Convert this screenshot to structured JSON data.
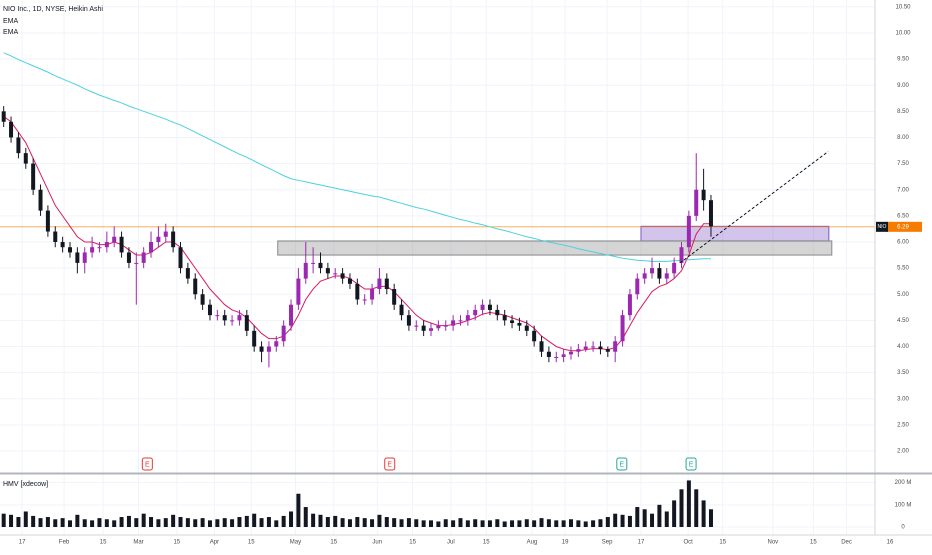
{
  "chart_data": {
    "type": "candlestick",
    "title": "NIO Inc., 1D, NYSE, Heikin Ashi",
    "xlim": [
      -0.5,
      126
    ],
    "xticks": [
      {
        "value": 2.5,
        "label": "17"
      },
      {
        "value": 8.2,
        "label": "Feb"
      },
      {
        "value": 13.5,
        "label": "15"
      },
      {
        "value": 18.3,
        "label": "Mar"
      },
      {
        "value": 23.5,
        "label": "15"
      },
      {
        "value": 28.6,
        "label": "Apr"
      },
      {
        "value": 33.6,
        "label": "15"
      },
      {
        "value": 39.6,
        "label": "May"
      },
      {
        "value": 44.8,
        "label": "15"
      },
      {
        "value": 50.7,
        "label": "Jun"
      },
      {
        "value": 55.5,
        "label": "15"
      },
      {
        "value": 60.7,
        "label": "Jul"
      },
      {
        "value": 65.5,
        "label": "15"
      },
      {
        "value": 71.7,
        "label": "Aug"
      },
      {
        "value": 76.2,
        "label": "19"
      },
      {
        "value": 81.9,
        "label": "Sep"
      },
      {
        "value": 86.5,
        "label": "17"
      },
      {
        "value": 92.9,
        "label": "Oct"
      },
      {
        "value": 97.6,
        "label": "15"
      },
      {
        "value": 104.4,
        "label": "Nov"
      },
      {
        "value": 109.9,
        "label": "15"
      },
      {
        "value": 114.4,
        "label": "Dec"
      },
      {
        "value": 120.3,
        "label": "16"
      }
    ],
    "ylim": [
      1.58,
      10.63
    ],
    "yticks": [
      {
        "value": 2,
        "label": "2.00"
      },
      {
        "value": 2.5,
        "label": "2.50"
      },
      {
        "value": 3,
        "label": "3.00"
      },
      {
        "value": 3.5,
        "label": "3.50"
      },
      {
        "value": 4,
        "label": "4.00"
      },
      {
        "value": 4.5,
        "label": "4.50"
      },
      {
        "value": 5,
        "label": "5.00"
      },
      {
        "value": 5.5,
        "label": "5.50"
      },
      {
        "value": 6,
        "label": "6.00"
      },
      {
        "value": 6.5,
        "label": "6.50"
      },
      {
        "value": 7,
        "label": "7.00"
      },
      {
        "value": 7.5,
        "label": "7.50"
      },
      {
        "value": 8,
        "label": "8.00"
      },
      {
        "value": 8.5,
        "label": "8.50"
      },
      {
        "value": 9,
        "label": "9.00"
      },
      {
        "value": 9.5,
        "label": "9.50"
      },
      {
        "value": 10,
        "label": "10.00"
      },
      {
        "value": 10.5,
        "label": "10.50"
      }
    ],
    "candles": {
      "up_color": "#9c27b0",
      "down_color": "#131722",
      "open": [
        8.5,
        8.3,
        8.0,
        7.7,
        7.5,
        7.0,
        6.6,
        6.2,
        6.0,
        5.9,
        5.8,
        5.6,
        5.8,
        5.9,
        5.9,
        6.0,
        6.1,
        5.8,
        5.6,
        5.6,
        5.8,
        6.0,
        6.1,
        6.2,
        5.9,
        5.5,
        5.3,
        5.0,
        4.8,
        4.6,
        4.6,
        4.5,
        4.5,
        4.6,
        4.3,
        4.0,
        3.9,
        4.0,
        4.1,
        4.4,
        4.8,
        5.3,
        5.6,
        5.6,
        5.5,
        5.4,
        5.4,
        5.3,
        5.2,
        4.9,
        4.9,
        5.1,
        5.3,
        5.1,
        4.8,
        4.6,
        4.4,
        4.4,
        4.3,
        4.35,
        4.4,
        4.4,
        4.5,
        4.5,
        4.6,
        4.7,
        4.8,
        4.7,
        4.6,
        4.5,
        4.45,
        4.4,
        4.3,
        4.1,
        3.9,
        3.8,
        3.8,
        3.85,
        3.9,
        3.95,
        4.0,
        4.0,
        3.95,
        3.9,
        4.1,
        4.6,
        5.0,
        5.3,
        5.4,
        5.5,
        5.3,
        5.4,
        5.6,
        5.9,
        6.5,
        7.0,
        6.8
      ],
      "high": [
        8.6,
        8.4,
        8.1,
        7.8,
        7.6,
        7.1,
        6.7,
        6.3,
        6.1,
        6.0,
        5.9,
        5.9,
        6.1,
        6.0,
        6.2,
        6.3,
        6.2,
        5.9,
        5.8,
        5.9,
        6.2,
        6.3,
        6.35,
        6.3,
        6.0,
        5.6,
        5.4,
        5.1,
        4.9,
        4.7,
        4.7,
        4.6,
        4.7,
        4.7,
        4.4,
        4.1,
        4.1,
        4.2,
        4.5,
        4.9,
        5.5,
        6.0,
        5.9,
        5.8,
        5.6,
        5.5,
        5.5,
        5.4,
        5.3,
        5.0,
        5.2,
        5.5,
        5.4,
        5.2,
        4.9,
        4.7,
        4.5,
        4.5,
        4.45,
        4.5,
        4.5,
        4.6,
        4.6,
        4.7,
        4.8,
        4.9,
        4.9,
        4.8,
        4.7,
        4.6,
        4.55,
        4.5,
        4.4,
        4.2,
        4.0,
        3.9,
        3.95,
        4.0,
        4.05,
        4.1,
        4.1,
        4.1,
        4.0,
        4.2,
        4.7,
        5.1,
        5.4,
        5.5,
        5.7,
        5.6,
        5.5,
        5.7,
        6.0,
        6.6,
        7.7,
        7.4,
        6.9
      ],
      "low": [
        8.2,
        7.9,
        7.6,
        7.4,
        6.9,
        6.5,
        6.1,
        5.9,
        5.8,
        5.7,
        5.4,
        5.4,
        5.7,
        5.8,
        5.8,
        5.9,
        5.7,
        5.5,
        4.8,
        5.5,
        5.7,
        5.9,
        6.0,
        5.8,
        5.4,
        5.2,
        4.9,
        4.7,
        4.5,
        4.5,
        4.4,
        4.4,
        4.4,
        4.2,
        3.9,
        3.7,
        3.6,
        3.9,
        4.0,
        4.3,
        4.7,
        5.2,
        5.4,
        5.4,
        5.3,
        5.3,
        5.2,
        5.1,
        4.8,
        4.8,
        4.8,
        5.0,
        5.0,
        4.7,
        4.5,
        4.3,
        4.3,
        4.2,
        4.2,
        4.3,
        4.3,
        4.3,
        4.4,
        4.4,
        4.5,
        4.6,
        4.6,
        4.5,
        4.4,
        4.35,
        4.3,
        4.2,
        4.0,
        3.8,
        3.7,
        3.7,
        3.7,
        3.75,
        3.8,
        3.9,
        3.9,
        3.85,
        3.8,
        3.7,
        4.0,
        4.5,
        4.9,
        5.2,
        5.3,
        5.2,
        5.2,
        5.3,
        5.5,
        5.8,
        6.4,
        6.6,
        6.1
      ],
      "close": [
        8.3,
        8.0,
        7.7,
        7.5,
        7.0,
        6.6,
        6.2,
        6.0,
        5.9,
        5.8,
        5.6,
        5.8,
        5.9,
        5.9,
        6.0,
        6.1,
        5.8,
        5.6,
        5.6,
        5.8,
        6.0,
        6.1,
        6.2,
        5.9,
        5.5,
        5.3,
        5.0,
        4.8,
        4.6,
        4.6,
        4.5,
        4.5,
        4.6,
        4.3,
        4.0,
        3.9,
        4.0,
        4.1,
        4.4,
        4.8,
        5.3,
        5.6,
        5.6,
        5.5,
        5.4,
        5.4,
        5.3,
        5.2,
        4.9,
        4.9,
        5.1,
        5.3,
        5.1,
        4.8,
        4.6,
        4.4,
        4.4,
        4.3,
        4.35,
        4.4,
        4.4,
        4.5,
        4.5,
        4.6,
        4.7,
        4.8,
        4.7,
        4.6,
        4.5,
        4.45,
        4.4,
        4.3,
        4.1,
        3.9,
        3.8,
        3.8,
        3.85,
        3.9,
        3.95,
        4.0,
        4.0,
        3.95,
        3.9,
        4.1,
        4.6,
        5.0,
        5.3,
        5.4,
        5.5,
        5.3,
        5.4,
        5.6,
        5.9,
        6.5,
        7.0,
        6.8,
        6.3
      ]
    },
    "series": [
      {
        "name": "EMA",
        "color": "#d81b60",
        "values": [
          8.4,
          8.3,
          8.1,
          7.9,
          7.6,
          7.3,
          7.0,
          6.7,
          6.5,
          6.3,
          6.1,
          6.0,
          6.0,
          5.95,
          5.95,
          6.0,
          5.95,
          5.85,
          5.75,
          5.75,
          5.8,
          5.9,
          6.0,
          6.0,
          5.9,
          5.7,
          5.5,
          5.3,
          5.1,
          4.95,
          4.8,
          4.7,
          4.65,
          4.55,
          4.4,
          4.25,
          4.15,
          4.15,
          4.2,
          4.35,
          4.6,
          4.9,
          5.1,
          5.25,
          5.3,
          5.35,
          5.35,
          5.3,
          5.2,
          5.1,
          5.1,
          5.15,
          5.15,
          5.05,
          4.9,
          4.75,
          4.6,
          4.5,
          4.45,
          4.4,
          4.4,
          4.42,
          4.45,
          4.5,
          4.55,
          4.62,
          4.65,
          4.63,
          4.6,
          4.55,
          4.5,
          4.45,
          4.35,
          4.2,
          4.1,
          4.0,
          3.95,
          3.92,
          3.92,
          3.94,
          3.96,
          3.96,
          3.94,
          3.98,
          4.15,
          4.4,
          4.65,
          4.85,
          5.05,
          5.15,
          5.2,
          5.3,
          5.45,
          5.75,
          6.15,
          6.35,
          6.35
        ]
      },
      {
        "name": "EMA",
        "color": "#4dd0e1",
        "values": [
          9.62,
          9.56,
          9.49,
          9.43,
          9.37,
          9.31,
          9.25,
          9.18,
          9.12,
          9.06,
          9.0,
          8.93,
          8.87,
          8.81,
          8.76,
          8.71,
          8.66,
          8.6,
          8.55,
          8.5,
          8.45,
          8.4,
          8.35,
          8.29,
          8.24,
          8.17,
          8.1,
          8.03,
          7.96,
          7.89,
          7.82,
          7.75,
          7.68,
          7.62,
          7.55,
          7.48,
          7.41,
          7.34,
          7.27,
          7.21,
          7.18,
          7.15,
          7.12,
          7.09,
          7.06,
          7.03,
          7.0,
          6.97,
          6.94,
          6.91,
          6.88,
          6.86,
          6.82,
          6.78,
          6.74,
          6.7,
          6.66,
          6.63,
          6.59,
          6.55,
          6.51,
          6.47,
          6.43,
          6.4,
          6.36,
          6.33,
          6.29,
          6.25,
          6.22,
          6.18,
          6.14,
          6.1,
          6.07,
          6.03,
          6.0,
          5.97,
          5.94,
          5.91,
          5.87,
          5.84,
          5.81,
          5.78,
          5.75,
          5.72,
          5.69,
          5.67,
          5.65,
          5.64,
          5.63,
          5.63,
          5.63,
          5.64,
          5.65,
          5.66,
          5.67,
          5.68,
          5.68
        ]
      }
    ],
    "price_line": {
      "value": 6.29,
      "symbol": "NIO",
      "color": "#f57c00"
    },
    "zones": [
      {
        "x": [
          86.5,
          112
        ],
        "y": [
          6.02,
          6.3
        ],
        "color": "#7e57c2"
      },
      {
        "x": [
          37.2,
          112.4
        ],
        "y": [
          5.75,
          6.02
        ],
        "color": "#888888"
      }
    ],
    "trend_line": {
      "x": [
        91.8,
        111.9
      ],
      "y": [
        5.6,
        7.73
      ]
    },
    "events": [
      {
        "x": 19.5,
        "label": "E",
        "color": "#e53935"
      },
      {
        "x": 52.4,
        "label": "E",
        "color": "#e53935"
      },
      {
        "x": 83.9,
        "label": "E",
        "color": "#26a69a"
      },
      {
        "x": 93.3,
        "label": "E",
        "color": "#26a69a"
      }
    ],
    "volume": {
      "title": "HMV [xdecow]",
      "color": "#131722",
      "ylim": [
        0,
        230
      ],
      "yticks": [
        0,
        {
          "value": 100,
          "label": "100 M"
        },
        {
          "value": 200,
          "label": "200 M"
        }
      ],
      "values": [
        60,
        55,
        45,
        70,
        50,
        40,
        45,
        35,
        40,
        30,
        55,
        35,
        30,
        40,
        35,
        30,
        45,
        50,
        40,
        60,
        45,
        35,
        40,
        55,
        45,
        40,
        35,
        40,
        30,
        35,
        40,
        35,
        45,
        50,
        60,
        40,
        45,
        30,
        50,
        70,
        150,
        90,
        60,
        55,
        45,
        50,
        40,
        35,
        45,
        40,
        35,
        55,
        45,
        40,
        35,
        40,
        35,
        30,
        30,
        25,
        35,
        30,
        40,
        30,
        35,
        30,
        30,
        35,
        25,
        30,
        30,
        35,
        30,
        40,
        35,
        30,
        30,
        35,
        30,
        25,
        30,
        35,
        45,
        60,
        55,
        50,
        90,
        80,
        60,
        100,
        70,
        120,
        170,
        210,
        170,
        120,
        80
      ]
    }
  }
}
